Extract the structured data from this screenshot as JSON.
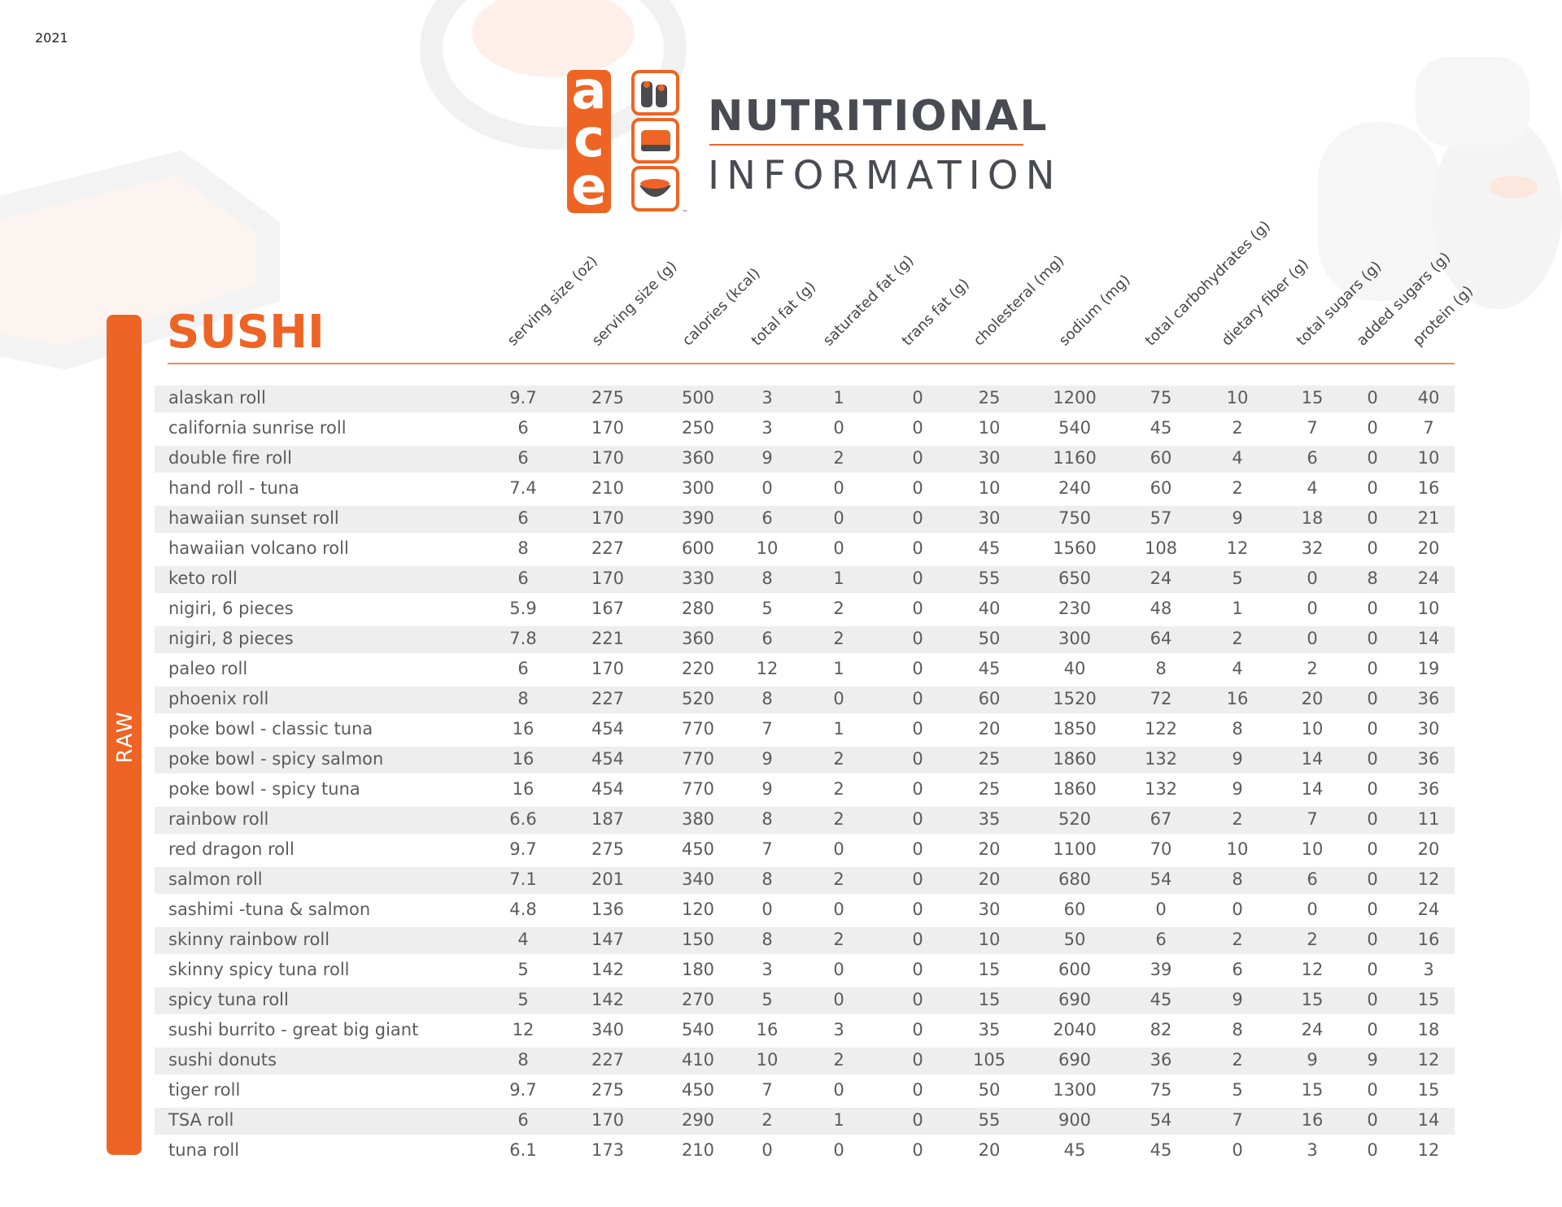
{
  "header": {
    "year": "2021",
    "logo": {
      "letters": [
        "a",
        "c",
        "e"
      ],
      "trademark": "™"
    },
    "title_line1": "NUTRITIONAL",
    "title_line2": "INFORMATION"
  },
  "section": {
    "title": "SUSHI",
    "side_label": "RAW"
  },
  "table": {
    "columns": [
      "serving size (oz)",
      "serving size (g)",
      "calories (kcal)",
      "total fat (g)",
      "saturated fat (g)",
      "trans fat (g)",
      "cholesteral (mg)",
      "sodium (mg)",
      "total carbohydrates (g)",
      "dietary fiber (g)",
      "total sugars (g)",
      "added sugars (g)",
      "protein (g)"
    ],
    "rows": [
      [
        "alaskan roll",
        9.7,
        275,
        500,
        3,
        1,
        0,
        25,
        1200,
        75,
        10,
        15,
        0,
        40
      ],
      [
        "california sunrise roll",
        6,
        170,
        250,
        3,
        0,
        0,
        10,
        540,
        45,
        2,
        7,
        0,
        7
      ],
      [
        "double fire roll",
        6,
        170,
        360,
        9,
        2,
        0,
        30,
        1160,
        60,
        4,
        6,
        0,
        10
      ],
      [
        "hand roll - tuna",
        7.4,
        210,
        300,
        0,
        0,
        0,
        10,
        240,
        60,
        2,
        4,
        0,
        16
      ],
      [
        "hawaiian sunset roll",
        6,
        170,
        390,
        6,
        0,
        0,
        30,
        750,
        57,
        9,
        18,
        0,
        21
      ],
      [
        "hawaiian volcano roll",
        8,
        227,
        600,
        10,
        0,
        0,
        45,
        1560,
        108,
        12,
        32,
        0,
        20
      ],
      [
        "keto roll",
        6,
        170,
        330,
        8,
        1,
        0,
        55,
        650,
        24,
        5,
        0,
        8,
        24
      ],
      [
        "nigiri, 6 pieces",
        5.9,
        167,
        280,
        5,
        2,
        0,
        40,
        230,
        48,
        1,
        0,
        0,
        10
      ],
      [
        "nigiri, 8 pieces",
        7.8,
        221,
        360,
        6,
        2,
        0,
        50,
        300,
        64,
        2,
        0,
        0,
        14
      ],
      [
        "paleo roll",
        6,
        170,
        220,
        12,
        1,
        0,
        45,
        40,
        8,
        4,
        2,
        0,
        19
      ],
      [
        "phoenix roll",
        8,
        227,
        520,
        8,
        0,
        0,
        60,
        1520,
        72,
        16,
        20,
        0,
        36
      ],
      [
        "poke bowl - classic tuna",
        16,
        454,
        770,
        7,
        1,
        0,
        20,
        1850,
        122,
        8,
        10,
        0,
        30
      ],
      [
        "poke bowl - spicy salmon",
        16,
        454,
        770,
        9,
        2,
        0,
        25,
        1860,
        132,
        9,
        14,
        0,
        36
      ],
      [
        "poke bowl - spicy tuna",
        16,
        454,
        770,
        9,
        2,
        0,
        25,
        1860,
        132,
        9,
        14,
        0,
        36
      ],
      [
        "rainbow roll",
        6.6,
        187,
        380,
        8,
        2,
        0,
        35,
        520,
        67,
        2,
        7,
        0,
        11
      ],
      [
        "red dragon roll",
        9.7,
        275,
        450,
        7,
        0,
        0,
        20,
        1100,
        70,
        10,
        10,
        0,
        20
      ],
      [
        "salmon roll",
        7.1,
        201,
        340,
        8,
        2,
        0,
        20,
        680,
        54,
        8,
        6,
        0,
        12
      ],
      [
        "sashimi -tuna & salmon",
        4.8,
        136,
        120,
        0,
        0,
        0,
        30,
        60,
        0,
        0,
        0,
        0,
        24
      ],
      [
        "skinny rainbow roll",
        4,
        147,
        150,
        8,
        2,
        0,
        10,
        50,
        6,
        2,
        2,
        0,
        16
      ],
      [
        "skinny spicy tuna roll",
        5,
        142,
        180,
        3,
        0,
        0,
        15,
        600,
        39,
        6,
        12,
        0,
        3
      ],
      [
        "spicy tuna roll",
        5,
        142,
        270,
        5,
        0,
        0,
        15,
        690,
        45,
        9,
        15,
        0,
        15
      ],
      [
        "sushi burrito - great big giant",
        12,
        340,
        540,
        16,
        3,
        0,
        35,
        2040,
        82,
        8,
        24,
        0,
        18
      ],
      [
        "sushi donuts",
        8,
        227,
        410,
        10,
        2,
        0,
        105,
        690,
        36,
        2,
        9,
        9,
        12
      ],
      [
        "tiger roll",
        9.7,
        275,
        450,
        7,
        0,
        0,
        50,
        1300,
        75,
        5,
        15,
        0,
        15
      ],
      [
        "TSA roll",
        6,
        170,
        290,
        2,
        1,
        0,
        55,
        900,
        54,
        7,
        16,
        0,
        14
      ],
      [
        "tuna roll",
        6.1,
        173,
        210,
        0,
        0,
        0,
        20,
        45,
        45,
        0,
        3,
        0,
        12
      ]
    ]
  }
}
